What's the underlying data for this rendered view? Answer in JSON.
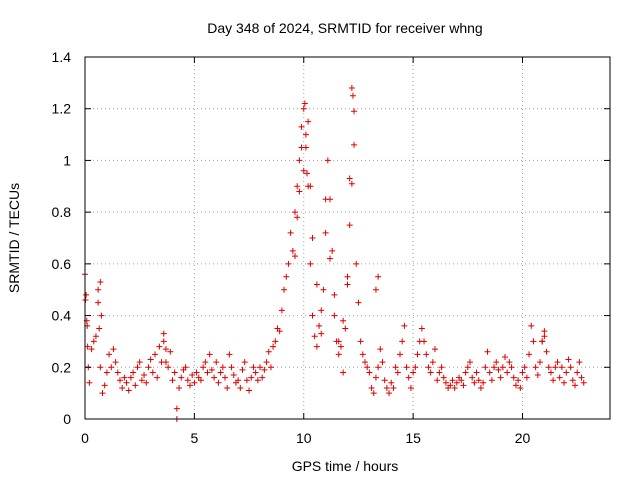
{
  "chart_data": {
    "type": "scatter",
    "title": "Day 348 of 2024, SRMTID for receiver whng",
    "xlabel": "GPS time / hours",
    "ylabel": "SRMTID / TECUs",
    "xlim": [
      0,
      24
    ],
    "ylim": [
      0,
      1.4
    ],
    "xticks": [
      0,
      5,
      10,
      15,
      20
    ],
    "yticks": [
      0,
      0.2,
      0.4,
      0.6,
      0.8,
      1,
      1.2,
      1.4
    ],
    "xtick_labels": [
      "0",
      "5",
      "10",
      "15",
      "20"
    ],
    "ytick_labels": [
      "0",
      "0.2",
      "0.4",
      "0.6",
      "0.8",
      "1",
      "1.2",
      "1.4"
    ],
    "grid": true,
    "marker": "+",
    "color": "#e00000",
    "series": [
      {
        "name": "SRMTID",
        "x": [
          0.0,
          0.05,
          0.1,
          0.15,
          0.2,
          0.3,
          0.4,
          0.5,
          0.6,
          0.7,
          0.75,
          0.8,
          0.9,
          1.0,
          1.1,
          1.2,
          1.3,
          1.4,
          1.5,
          1.6,
          1.7,
          1.8,
          1.9,
          2.0,
          2.1,
          2.2,
          2.3,
          2.4,
          2.5,
          2.6,
          2.7,
          2.8,
          2.9,
          3.0,
          3.1,
          3.2,
          3.3,
          3.4,
          3.5,
          3.6,
          3.7,
          3.8,
          3.9,
          4.0,
          4.1,
          4.2,
          4.3,
          4.4,
          4.5,
          4.6,
          4.7,
          4.8,
          4.9,
          5.0,
          5.1,
          5.2,
          5.3,
          5.4,
          5.5,
          5.6,
          5.7,
          5.8,
          5.9,
          6.0,
          6.1,
          6.2,
          6.3,
          6.4,
          6.5,
          6.6,
          6.7,
          6.8,
          6.9,
          7.0,
          7.1,
          7.2,
          7.3,
          7.4,
          7.5,
          7.6,
          7.7,
          7.8,
          7.9,
          8.0,
          8.1,
          8.2,
          8.3,
          8.4,
          8.5,
          8.6,
          8.7,
          8.8,
          8.9,
          9.0,
          9.1,
          9.2,
          9.3,
          9.4,
          9.5,
          9.6,
          9.7,
          9.8,
          9.9,
          10.0,
          10.05,
          10.1,
          10.15,
          10.2,
          10.3,
          10.4,
          10.5,
          10.6,
          10.7,
          10.8,
          10.9,
          11.0,
          11.1,
          11.2,
          11.3,
          11.4,
          11.5,
          11.6,
          11.7,
          11.8,
          11.9,
          12.0,
          12.1,
          12.2,
          12.25,
          12.3,
          12.4,
          12.5,
          12.6,
          12.7,
          12.8,
          12.9,
          13.0,
          13.1,
          13.2,
          13.3,
          13.4,
          13.5,
          13.6,
          13.7,
          13.8,
          13.9,
          14.0,
          14.1,
          14.2,
          14.3,
          14.4,
          14.5,
          14.6,
          14.7,
          14.8,
          14.9,
          15.0,
          15.1,
          15.2,
          15.3,
          15.4,
          15.5,
          15.6,
          15.7,
          15.8,
          15.9,
          16.0,
          16.1,
          16.2,
          16.3,
          16.4,
          16.5,
          16.6,
          16.7,
          16.8,
          16.9,
          17.0,
          17.1,
          17.2,
          17.3,
          17.4,
          17.5,
          17.6,
          17.7,
          17.8,
          17.9,
          18.0,
          18.1,
          18.2,
          18.3,
          18.4,
          18.5,
          18.6,
          18.7,
          18.8,
          18.9,
          19.0,
          19.1,
          19.2,
          19.3,
          19.4,
          19.5,
          19.6,
          19.7,
          19.8,
          19.9,
          20.0,
          20.1,
          20.2,
          20.3,
          20.4,
          20.5,
          20.6,
          20.7,
          20.8,
          20.9,
          21.0,
          21.1,
          21.2,
          21.3,
          21.4,
          21.5,
          21.6,
          21.7,
          21.8,
          21.9,
          22.0,
          22.1,
          22.2,
          22.3,
          22.4,
          22.5,
          22.6,
          22.7,
          22.8,
          0.02,
          0.08,
          0.12,
          0.6,
          0.65,
          0.7,
          3.6,
          3.7,
          4.2,
          9.6,
          9.7,
          9.8,
          9.9,
          10.0,
          10.1,
          10.2,
          10.3,
          10.4,
          10.6,
          10.8,
          11.0,
          11.2,
          11.4,
          11.6,
          11.8,
          12.0,
          12.1,
          12.2,
          12.3,
          13.3,
          13.4,
          20.9,
          21.0
        ],
        "y": [
          0.56,
          0.48,
          0.36,
          0.2,
          0.14,
          0.27,
          0.3,
          0.32,
          0.5,
          0.53,
          0.4,
          0.1,
          0.13,
          0.18,
          0.25,
          0.2,
          0.27,
          0.22,
          0.18,
          0.15,
          0.12,
          0.16,
          0.14,
          0.11,
          0.16,
          0.18,
          0.13,
          0.2,
          0.22,
          0.15,
          0.17,
          0.14,
          0.2,
          0.23,
          0.18,
          0.25,
          0.16,
          0.28,
          0.22,
          0.3,
          0.27,
          0.2,
          0.26,
          0.15,
          0.18,
          0.04,
          0.12,
          0.16,
          0.19,
          0.2,
          0.15,
          0.13,
          0.17,
          0.14,
          0.18,
          0.16,
          0.15,
          0.2,
          0.22,
          0.18,
          0.25,
          0.19,
          0.16,
          0.22,
          0.14,
          0.18,
          0.2,
          0.16,
          0.12,
          0.25,
          0.2,
          0.17,
          0.14,
          0.15,
          0.12,
          0.19,
          0.22,
          0.15,
          0.11,
          0.16,
          0.2,
          0.18,
          0.15,
          0.2,
          0.16,
          0.19,
          0.22,
          0.26,
          0.2,
          0.28,
          0.3,
          0.35,
          0.34,
          0.42,
          0.5,
          0.55,
          0.6,
          0.72,
          0.65,
          0.8,
          0.9,
          1.0,
          1.13,
          1.2,
          1.22,
          1.05,
          0.95,
          0.9,
          0.6,
          0.4,
          0.32,
          0.28,
          0.36,
          0.33,
          0.5,
          0.72,
          1.0,
          0.85,
          0.65,
          0.4,
          0.3,
          0.25,
          0.28,
          0.18,
          0.35,
          0.55,
          0.93,
          1.28,
          1.25,
          1.19,
          0.6,
          0.45,
          0.3,
          0.25,
          0.22,
          0.2,
          0.18,
          0.12,
          0.1,
          0.16,
          0.2,
          0.27,
          0.22,
          0.15,
          0.12,
          0.1,
          0.14,
          0.12,
          0.2,
          0.18,
          0.25,
          0.3,
          0.36,
          0.2,
          0.16,
          0.12,
          0.18,
          0.2,
          0.25,
          0.3,
          0.35,
          0.3,
          0.25,
          0.2,
          0.18,
          0.22,
          0.27,
          0.15,
          0.18,
          0.2,
          0.16,
          0.14,
          0.12,
          0.13,
          0.15,
          0.12,
          0.14,
          0.16,
          0.15,
          0.13,
          0.18,
          0.2,
          0.22,
          0.16,
          0.14,
          0.18,
          0.15,
          0.12,
          0.14,
          0.2,
          0.26,
          0.18,
          0.15,
          0.2,
          0.22,
          0.19,
          0.16,
          0.2,
          0.24,
          0.18,
          0.22,
          0.2,
          0.16,
          0.13,
          0.15,
          0.12,
          0.18,
          0.2,
          0.16,
          0.25,
          0.36,
          0.3,
          0.2,
          0.17,
          0.22,
          0.3,
          0.32,
          0.26,
          0.2,
          0.18,
          0.15,
          0.2,
          0.22,
          0.16,
          0.2,
          0.14,
          0.18,
          0.23,
          0.2,
          0.15,
          0.13,
          0.18,
          0.22,
          0.16,
          0.14,
          0.46,
          0.38,
          0.28,
          0.45,
          0.35,
          0.2,
          0.33,
          0.22,
          0.0,
          0.63,
          0.78,
          0.88,
          1.05,
          0.96,
          1.1,
          1.15,
          0.9,
          0.7,
          0.52,
          0.42,
          0.85,
          0.62,
          0.48,
          0.3,
          0.38,
          0.52,
          0.75,
          0.91,
          1.06,
          0.5,
          0.55,
          0.3,
          0.34
        ]
      }
    ]
  }
}
